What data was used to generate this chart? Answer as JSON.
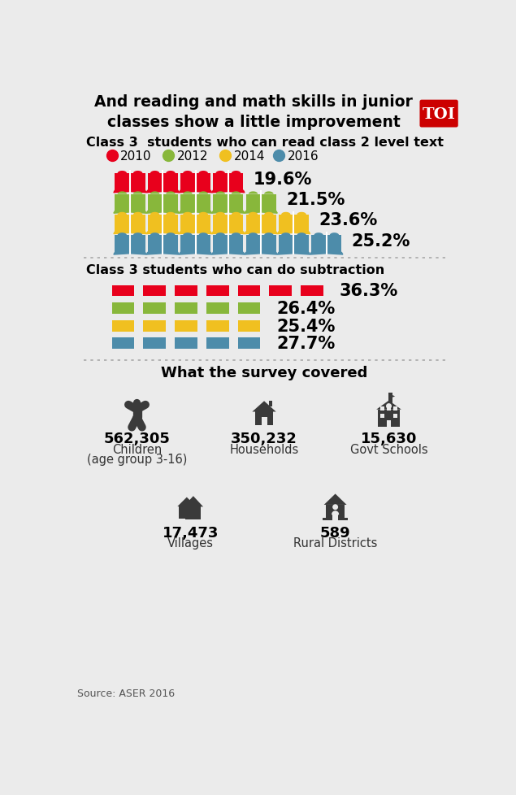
{
  "title": "And reading and math skills in junior\nclasses show a little improvement",
  "bg_color": "#ebebeb",
  "toi_color": "#cc0000",
  "section1_title": "Class 3  students who can read class 2 level text",
  "section2_title": "Class 3 students who can do subtraction",
  "section3_title": "What the survey covered",
  "years": [
    "2010",
    "2012",
    "2014",
    "2016"
  ],
  "year_colors": [
    "#e8001c",
    "#88b73b",
    "#f0c020",
    "#4d8caa"
  ],
  "reading_pcts": [
    "19.6%",
    "21.5%",
    "23.6%",
    "25.2%"
  ],
  "reading_book_counts": [
    4,
    5,
    6,
    7
  ],
  "subtraction_pcts": [
    "36.3%",
    "26.4%",
    "25.4%",
    "27.7%"
  ],
  "subtraction_dash_counts": [
    7,
    5,
    5,
    5
  ],
  "survey_data": [
    {
      "number": "562,305",
      "label1": "Children",
      "label2": "(age group 3-16)"
    },
    {
      "number": "350,232",
      "label1": "Households",
      "label2": ""
    },
    {
      "number": "15,630",
      "label1": "Govt Schools",
      "label2": ""
    },
    {
      "number": "17,473",
      "label1": "Villages",
      "label2": ""
    },
    {
      "number": "589",
      "label1": "Rural Districts",
      "label2": ""
    }
  ],
  "icon_color": "#3a3a3a",
  "source_text": "Source: ASER 2016"
}
